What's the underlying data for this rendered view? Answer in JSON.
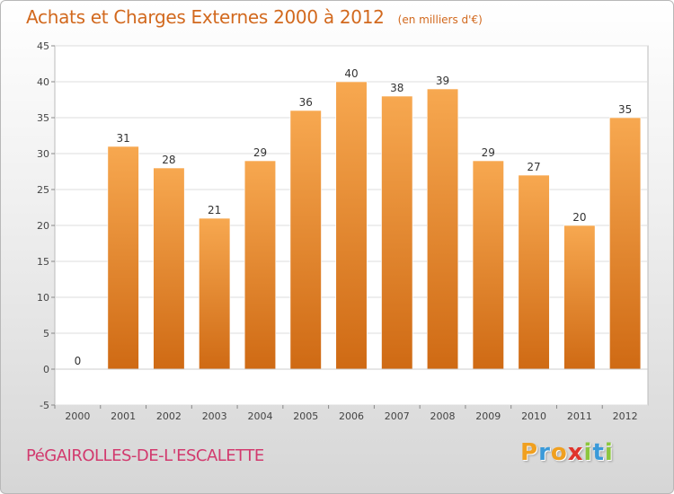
{
  "header": {
    "title": "Achats et Charges Externes 2000 à 2012",
    "subtitle": "(en milliers d'€)"
  },
  "footer": {
    "commune": "PéGAIROLLES-DE-L'ESCALETTE",
    "logo_letters": [
      {
        "char": "P",
        "color": "#f0a020"
      },
      {
        "char": "r",
        "color": "#3a9ad9"
      },
      {
        "char": "o",
        "color": "#f0a020"
      },
      {
        "char": "x",
        "color": "#e0342c"
      },
      {
        "char": "i",
        "color": "#8cc63e"
      },
      {
        "char": "t",
        "color": "#3a9ad9"
      },
      {
        "char": "i",
        "color": "#8cc63e"
      }
    ]
  },
  "chart_data": {
    "type": "bar",
    "categories": [
      "2000",
      "2001",
      "2002",
      "2003",
      "2004",
      "2005",
      "2006",
      "2007",
      "2008",
      "2009",
      "2010",
      "2011",
      "2012"
    ],
    "values": [
      0,
      31,
      28,
      21,
      29,
      36,
      40,
      38,
      39,
      29,
      27,
      20,
      35
    ],
    "title": "Achats et Charges Externes 2000 à 2012",
    "ylim": [
      -5,
      45
    ],
    "yticks": [
      -5,
      0,
      5,
      10,
      15,
      20,
      25,
      30,
      35,
      40,
      45
    ],
    "grid": true,
    "legend": "none",
    "colors": {
      "bar_light": "#f7a850",
      "bar_dark": "#cf6a14",
      "label": "#333333",
      "grid": "#dddddd"
    }
  }
}
